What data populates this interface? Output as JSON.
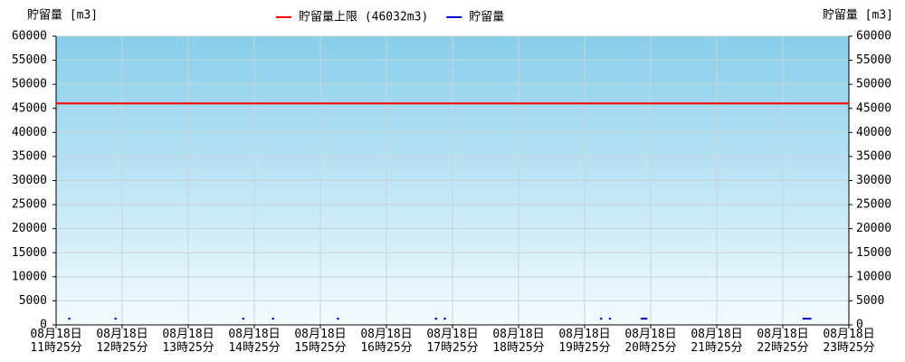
{
  "chart_data": {
    "type": "line",
    "y_label": "貯留量 [m3]",
    "y2_label": "貯留量 [m3]",
    "xlim": [
      "08-18 11:25",
      "08-18 23:25"
    ],
    "xticks": [
      {
        "value": "08-18 11:25",
        "label": "08月18日\n11時25分"
      },
      {
        "value": "08-18 12:25",
        "label": "08月18日\n12時25分"
      },
      {
        "value": "08-18 13:25",
        "label": "08月18日\n13時25分"
      },
      {
        "value": "08-18 14:25",
        "label": "08月18日\n14時25分"
      },
      {
        "value": "08-18 15:25",
        "label": "08月18日\n15時25分"
      },
      {
        "value": "08-18 16:25",
        "label": "08月18日\n16時25分"
      },
      {
        "value": "08-18 17:25",
        "label": "08月18日\n17時25分"
      },
      {
        "value": "08-18 18:25",
        "label": "08月18日\n18時25分"
      },
      {
        "value": "08-18 19:25",
        "label": "08月18日\n19時25分"
      },
      {
        "value": "08-18 20:25",
        "label": "08月18日\n20時25分"
      },
      {
        "value": "08-18 21:25",
        "label": "08月18日\n21時25分"
      },
      {
        "value": "08-18 22:25",
        "label": "08月18日\n22時25分"
      },
      {
        "value": "08-18 23:25",
        "label": "08月18日\n23時25分"
      }
    ],
    "ylim": [
      0,
      60000
    ],
    "yticks": [
      0,
      5000,
      10000,
      15000,
      20000,
      25000,
      30000,
      35000,
      40000,
      45000,
      50000,
      55000,
      60000
    ],
    "y2lim": [
      0,
      60000
    ],
    "y2ticks": [
      0,
      5000,
      10000,
      15000,
      20000,
      25000,
      30000,
      35000,
      40000,
      45000,
      50000,
      55000,
      60000
    ],
    "grid": true,
    "legend": "top",
    "series": [
      {
        "name": "貯留量上限 (46032m3)",
        "color": "#ff0000",
        "x": [
          "08-18 11:25",
          "08-18 23:25"
        ],
        "values": [
          46032,
          46032
        ]
      },
      {
        "name": "貯留量",
        "color": "#0000cc",
        "x": [
          "08-18 11:36",
          "08-18 11:38",
          "08-18 12:00",
          "08-18 12:18",
          "08-18 12:20",
          "08-18 13:00",
          "08-18 14:14",
          "08-18 14:16",
          "08-18 14:30",
          "08-18 14:41",
          "08-18 14:43",
          "08-18 15:00",
          "08-18 15:40",
          "08-18 15:42",
          "08-18 16:00",
          "08-18 17:09",
          "08-18 17:11",
          "08-18 17:14",
          "08-18 17:17",
          "08-18 17:19",
          "08-18 18:00",
          "08-18 19:39",
          "08-18 19:41",
          "08-18 19:44",
          "08-18 19:47",
          "08-18 19:49",
          "08-18 20:00",
          "08-18 20:16",
          "08-18 20:22",
          "08-18 21:00",
          "08-18 22:43",
          "08-18 22:51"
        ],
        "values": [
          1300,
          1300,
          null,
          1300,
          1300,
          null,
          1300,
          1300,
          null,
          1300,
          1300,
          null,
          1300,
          1300,
          null,
          1300,
          1300,
          null,
          1300,
          1300,
          null,
          1300,
          1300,
          null,
          1300,
          1300,
          null,
          1300,
          1300,
          null,
          1300,
          1300
        ]
      }
    ]
  }
}
